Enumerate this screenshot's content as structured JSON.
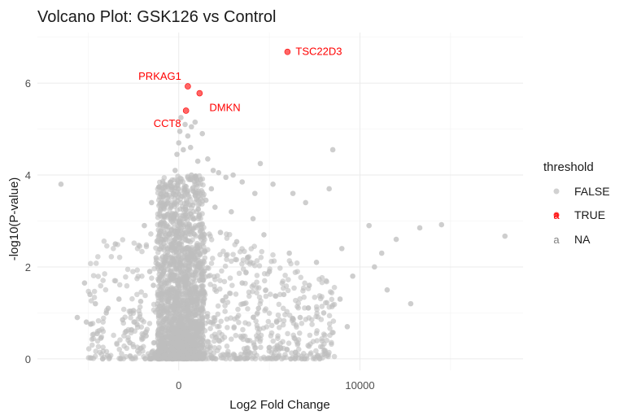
{
  "chart_data": {
    "type": "scatter",
    "title": "Volcano Plot: GSK126 vs Control",
    "xlabel": "Log2 Fold Change",
    "ylabel": "-log10(P-value)",
    "xlim": [
      -7800,
      19000
    ],
    "ylim": [
      -0.25,
      7.1
    ],
    "x_ticks": [
      0,
      10000
    ],
    "x_tick_labels": [
      "0",
      "10000"
    ],
    "y_ticks": [
      0,
      2,
      4,
      6
    ],
    "y_tick_labels": [
      "0",
      "2",
      "4",
      "6"
    ],
    "grid": true,
    "legend": {
      "title": "threshold",
      "position": "right",
      "entries": [
        {
          "label": "FALSE",
          "color": "#bebebe",
          "glyph": "point"
        },
        {
          "label": "TRUE",
          "color": "#ff0000",
          "glyph": "point+a"
        },
        {
          "label": "NA",
          "color": "#7f7f7f",
          "glyph": "a"
        }
      ]
    },
    "colors": {
      "FALSE": "#bebebe",
      "TRUE": "#ff0000"
    },
    "series": [
      {
        "name": "TRUE",
        "points": [
          {
            "x": 6000,
            "y": 6.68,
            "label": "TSC22D3"
          },
          {
            "x": 500,
            "y": 5.93,
            "label": "PRKAG1"
          },
          {
            "x": 1150,
            "y": 5.78,
            "label": "DMKN"
          },
          {
            "x": 400,
            "y": 5.4,
            "label": "CCT8"
          }
        ]
      },
      {
        "name": "FALSE",
        "points": [
          {
            "x": -6500,
            "y": 3.8
          },
          {
            "x": -5200,
            "y": 1.65
          },
          {
            "x": -5600,
            "y": 0.9
          },
          {
            "x": -5100,
            "y": 0.8
          },
          {
            "x": -4900,
            "y": 1.4
          },
          {
            "x": -4600,
            "y": 1.2
          },
          {
            "x": -4500,
            "y": 0.55
          },
          {
            "x": -4300,
            "y": 0.45
          },
          {
            "x": -4000,
            "y": 1.0
          },
          {
            "x": -3900,
            "y": 1.1
          },
          {
            "x": -3500,
            "y": 2.5
          },
          {
            "x": -3300,
            "y": 1.3
          },
          {
            "x": -3100,
            "y": 0.85
          },
          {
            "x": -2900,
            "y": 0.6
          },
          {
            "x": -2700,
            "y": 0.35
          },
          {
            "x": -2500,
            "y": 1.05
          },
          {
            "x": -2300,
            "y": 0.75
          },
          {
            "x": -2100,
            "y": 1.25
          },
          {
            "x": -1900,
            "y": 2.9
          },
          {
            "x": -1800,
            "y": 0.5
          },
          {
            "x": -1600,
            "y": 1.9
          },
          {
            "x": -1500,
            "y": 3.4
          },
          {
            "x": -1400,
            "y": 1.6
          },
          {
            "x": -1250,
            "y": 2.2
          },
          {
            "x": -1100,
            "y": 1.7
          },
          {
            "x": -950,
            "y": 2.6
          },
          {
            "x": -800,
            "y": 3.1
          },
          {
            "x": -650,
            "y": 1.45
          },
          {
            "x": -500,
            "y": 2.05
          },
          {
            "x": -400,
            "y": 2.8
          },
          {
            "x": -300,
            "y": 3.6
          },
          {
            "x": -200,
            "y": 4.1
          },
          {
            "x": -100,
            "y": 4.45
          },
          {
            "x": 0,
            "y": 4.7
          },
          {
            "x": 60,
            "y": 4.95
          },
          {
            "x": 120,
            "y": 5.25
          },
          {
            "x": 250,
            "y": 4.55
          },
          {
            "x": 350,
            "y": 5.1
          },
          {
            "x": 500,
            "y": 4.85
          },
          {
            "x": 700,
            "y": 5.05
          },
          {
            "x": 900,
            "y": 5.15
          },
          {
            "x": 1300,
            "y": 4.9
          },
          {
            "x": 650,
            "y": 4.6
          },
          {
            "x": 1050,
            "y": 4.3
          },
          {
            "x": 1600,
            "y": 4.35
          },
          {
            "x": 1900,
            "y": 4.1
          },
          {
            "x": 2200,
            "y": 4.05
          },
          {
            "x": 2600,
            "y": 3.95
          },
          {
            "x": 3000,
            "y": 4.0
          },
          {
            "x": 3500,
            "y": 3.85
          },
          {
            "x": 4200,
            "y": 3.6
          },
          {
            "x": 4500,
            "y": 4.25
          },
          {
            "x": 5200,
            "y": 3.8
          },
          {
            "x": 6300,
            "y": 3.6
          },
          {
            "x": 7000,
            "y": 3.4
          },
          {
            "x": 8500,
            "y": 4.55
          },
          {
            "x": 8300,
            "y": 3.7
          },
          {
            "x": 9000,
            "y": 2.4
          },
          {
            "x": 10500,
            "y": 2.9
          },
          {
            "x": 11200,
            "y": 2.3
          },
          {
            "x": 11500,
            "y": 1.5
          },
          {
            "x": 12000,
            "y": 2.6
          },
          {
            "x": 12800,
            "y": 1.2
          },
          {
            "x": 13300,
            "y": 2.85
          },
          {
            "x": 14500,
            "y": 2.92
          },
          {
            "x": 18000,
            "y": 2.67
          },
          {
            "x": 10800,
            "y": 2.0
          },
          {
            "x": 9600,
            "y": 1.8
          },
          {
            "x": 8900,
            "y": 1.3
          },
          {
            "x": 9300,
            "y": 0.7
          },
          {
            "x": 8000,
            "y": 1.0
          },
          {
            "x": 7600,
            "y": 2.1
          },
          {
            "x": 7200,
            "y": 1.6
          },
          {
            "x": 6700,
            "y": 0.9
          },
          {
            "x": 6100,
            "y": 2.3
          },
          {
            "x": 5800,
            "y": 1.4
          },
          {
            "x": 5400,
            "y": 0.8
          },
          {
            "x": 5000,
            "y": 1.9
          },
          {
            "x": 4700,
            "y": 2.7
          },
          {
            "x": 4400,
            "y": 1.1
          },
          {
            "x": 4100,
            "y": 3.05
          },
          {
            "x": 3800,
            "y": 2.2
          },
          {
            "x": 3500,
            "y": 1.65
          },
          {
            "x": 3200,
            "y": 2.55
          },
          {
            "x": 2900,
            "y": 3.2
          },
          {
            "x": 2600,
            "y": 1.35
          },
          {
            "x": 2300,
            "y": 2.75
          },
          {
            "x": 2000,
            "y": 3.3
          },
          {
            "x": 1800,
            "y": 3.7
          },
          {
            "x": 1500,
            "y": 3.45
          },
          {
            "x": 1200,
            "y": 3.9
          },
          {
            "x": 900,
            "y": 3.55
          },
          {
            "x": 700,
            "y": 4.0
          },
          {
            "x": 400,
            "y": 3.75
          }
        ]
      }
    ]
  }
}
